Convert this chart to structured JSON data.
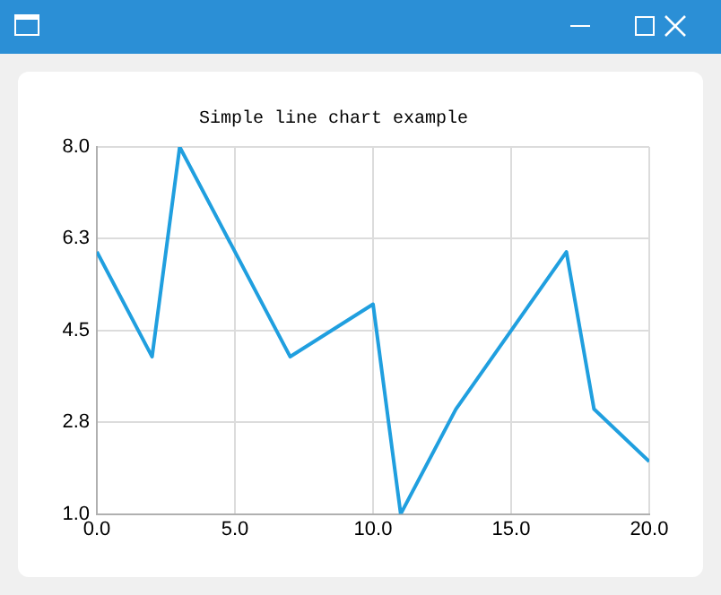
{
  "chart_data": {
    "type": "line",
    "title": "Simple line chart example",
    "x": [
      0,
      2,
      3,
      7,
      10,
      11,
      13,
      17,
      18,
      20
    ],
    "series": [
      {
        "color": "#209fdf",
        "values": [
          6,
          4,
          8,
          4,
          5,
          1,
          3,
          6,
          3,
          2
        ]
      }
    ],
    "xlim": [
      0,
      20
    ],
    "xticks": [
      {
        "value": 0,
        "label": "0.0"
      },
      {
        "value": 5,
        "label": "5.0"
      },
      {
        "value": 10,
        "label": "10.0"
      },
      {
        "value": 15,
        "label": "15.0"
      },
      {
        "value": 20,
        "label": "20.0"
      }
    ],
    "ylim": [
      1,
      8
    ],
    "yticks": [
      {
        "value": 1,
        "label": "1.0"
      },
      {
        "value": 2.75,
        "label": "2.8"
      },
      {
        "value": 4.5,
        "label": "4.5"
      },
      {
        "value": 6.25,
        "label": "6.3"
      },
      {
        "value": 8,
        "label": "8.0"
      }
    ],
    "grid": true,
    "legend": false,
    "marker": "none",
    "line_style": "solid"
  }
}
